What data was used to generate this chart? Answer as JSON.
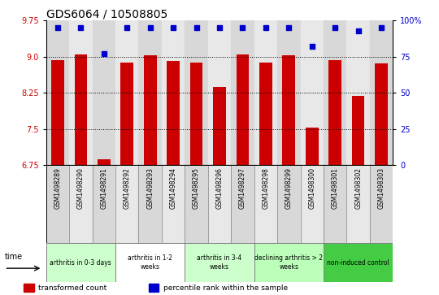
{
  "title": "GDS6064 / 10508805",
  "samples": [
    "GSM1498289",
    "GSM1498290",
    "GSM1498291",
    "GSM1498292",
    "GSM1498293",
    "GSM1498294",
    "GSM1498295",
    "GSM1498296",
    "GSM1498297",
    "GSM1498298",
    "GSM1498299",
    "GSM1498300",
    "GSM1498301",
    "GSM1498302",
    "GSM1498303"
  ],
  "bar_values": [
    8.93,
    9.05,
    6.87,
    8.88,
    9.03,
    8.91,
    8.88,
    8.37,
    9.05,
    8.88,
    9.04,
    7.53,
    8.93,
    8.18,
    8.87
  ],
  "percentile_values": [
    95,
    95,
    77,
    95,
    95,
    95,
    95,
    95,
    95,
    95,
    95,
    82,
    95,
    93,
    95
  ],
  "ylim_left": [
    6.75,
    9.75
  ],
  "ylim_right": [
    0,
    100
  ],
  "yticks_left": [
    6.75,
    7.5,
    8.25,
    9.0,
    9.75
  ],
  "yticks_right": [
    0,
    25,
    50,
    75,
    100
  ],
  "bar_color": "#cc0000",
  "dot_color": "#0000cc",
  "grid_color": "#000000",
  "col_colors": [
    "#d8d8d8",
    "#e8e8e8"
  ],
  "groups": [
    {
      "label": "arthritis in 0-3 days",
      "start": 0,
      "end": 3,
      "color": "#ccffcc"
    },
    {
      "label": "arthritis in 1-2\nweeks",
      "start": 3,
      "end": 6,
      "color": "#ffffff"
    },
    {
      "label": "arthritis in 3-4\nweeks",
      "start": 6,
      "end": 9,
      "color": "#ccffcc"
    },
    {
      "label": "declining arthritis > 2\nweeks",
      "start": 9,
      "end": 12,
      "color": "#bbffbb"
    },
    {
      "label": "non-induced control",
      "start": 12,
      "end": 15,
      "color": "#44cc44"
    }
  ],
  "legend_items": [
    {
      "label": "transformed count",
      "color": "#cc0000"
    },
    {
      "label": "percentile rank within the sample",
      "color": "#0000cc"
    }
  ],
  "title_fontsize": 10,
  "axis_label_color_left": "#cc0000",
  "axis_label_color_right": "#0000cc",
  "bg_color": "#ffffff"
}
